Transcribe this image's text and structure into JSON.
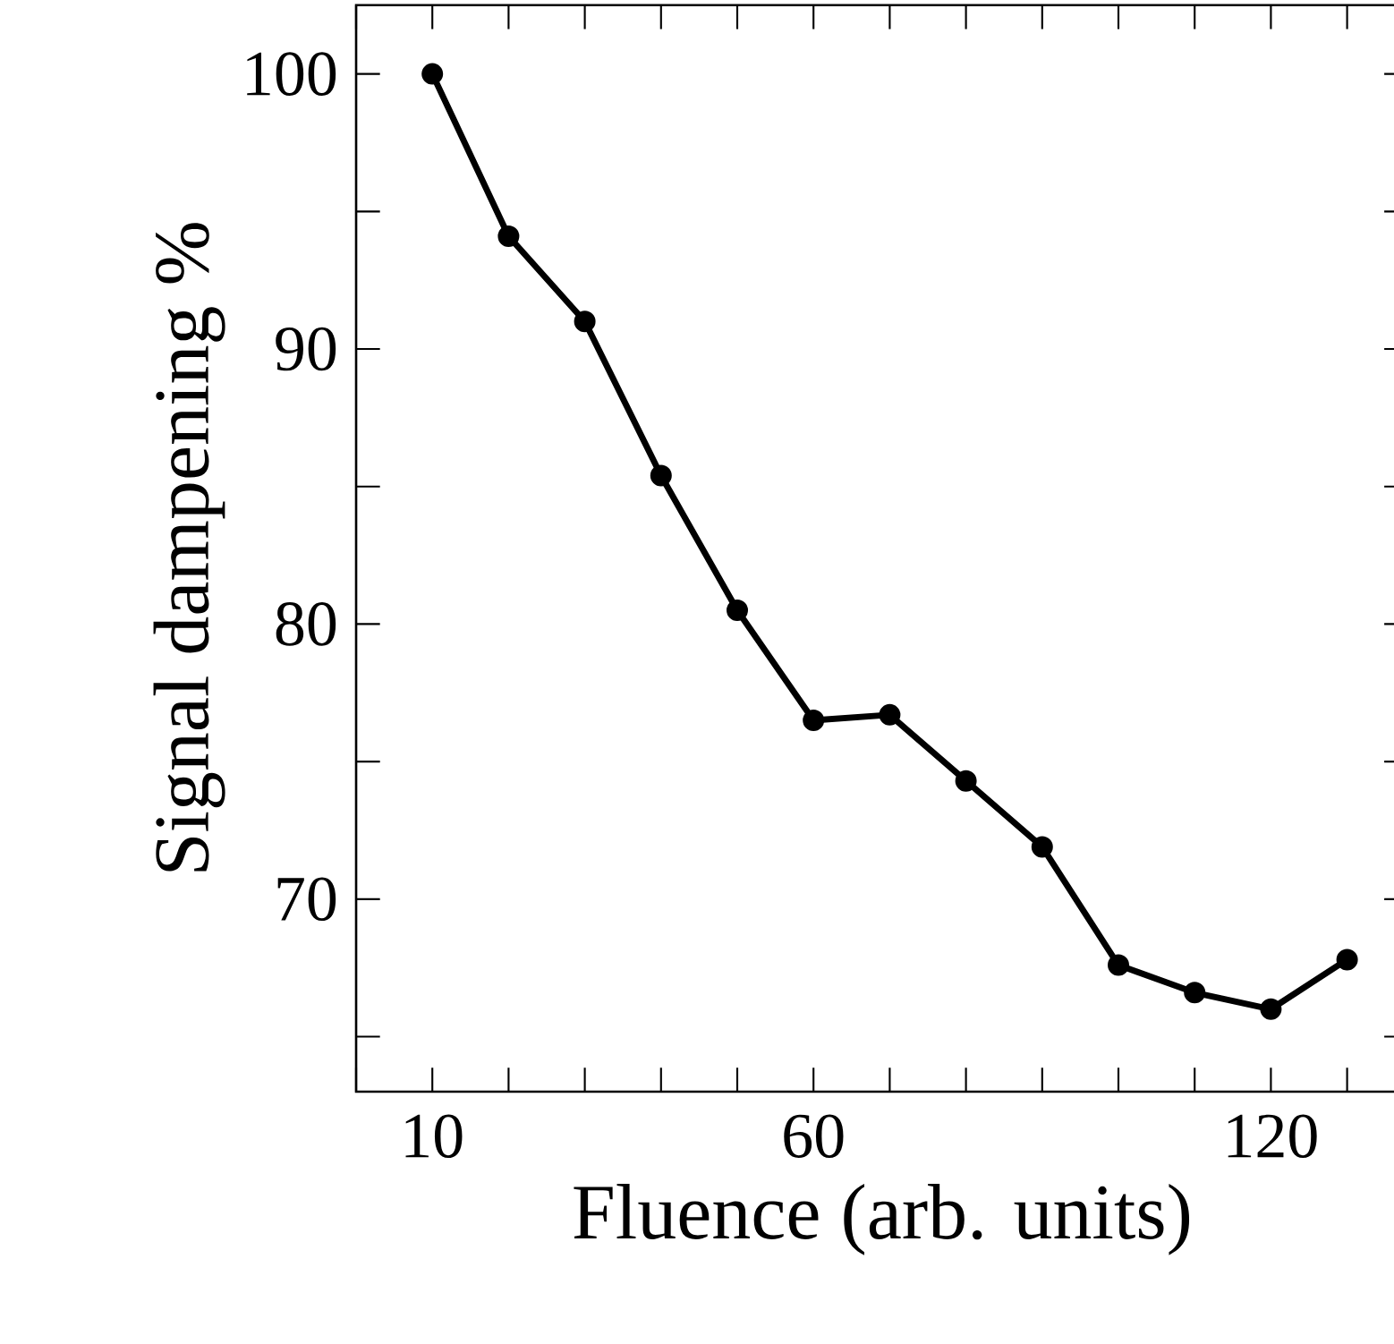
{
  "chart_data": {
    "type": "line",
    "xlabel": "Fluence (arb. units)",
    "ylabel": "Signal dampening %",
    "x": [
      10,
      20,
      30,
      40,
      50,
      60,
      70,
      80,
      90,
      100,
      110,
      120,
      130
    ],
    "values": [
      100,
      94.1,
      91.0,
      85.4,
      80.5,
      76.5,
      76.7,
      74.3,
      71.9,
      67.6,
      66.6,
      66.0,
      67.8
    ],
    "color": "#000000",
    "marker": "circle",
    "line_style": "solid",
    "grid": false,
    "xlim": [
      0,
      138
    ],
    "ylim": [
      63,
      102.5
    ],
    "xticks": [
      {
        "value": 0,
        "label": null
      },
      10,
      {
        "value": 20,
        "label": null
      },
      {
        "value": 30,
        "label": null
      },
      {
        "value": 40,
        "label": null
      },
      {
        "value": 50,
        "label": null
      },
      60,
      {
        "value": 70,
        "label": null
      },
      {
        "value": 80,
        "label": null
      },
      {
        "value": 90,
        "label": null
      },
      {
        "value": 100,
        "label": null
      },
      {
        "value": 110,
        "label": null
      },
      120,
      {
        "value": 130,
        "label": null
      }
    ],
    "yticks": [
      {
        "value": 65,
        "label": null
      },
      70,
      {
        "value": 75,
        "label": null
      },
      80,
      {
        "value": 85,
        "label": null
      },
      90,
      {
        "value": 95,
        "label": null
      },
      100
    ]
  }
}
